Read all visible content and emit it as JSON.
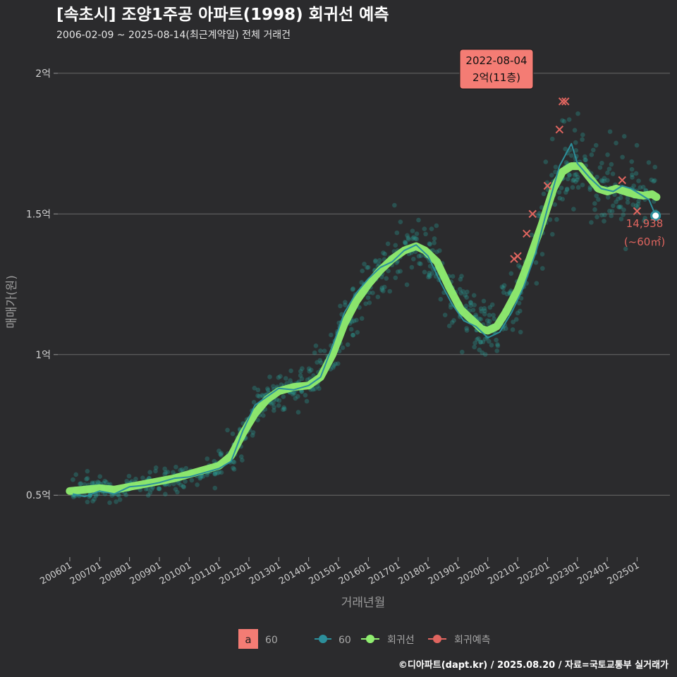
{
  "header": {
    "title": "[속초시] 조양1주공 아파트(1998) 회귀선 예측",
    "subtitle": "2006-02-09 ~ 2025-08-14(최근계약일) 전체 거래건"
  },
  "credit": "©디아파트(dapt.kr) / 2025.08.20 / 자료=국토교통부 실거래가",
  "colors": {
    "background": "#2b2b2d",
    "scatter": "#2aa198",
    "trend_line": "#2c8f9b",
    "regression": "#90ee70",
    "prediction": "#e0655f",
    "grid": "#6a6a6a"
  },
  "legend": {
    "badge_letter": "a",
    "badge_label": "60",
    "items": [
      {
        "label": "60",
        "color": "#2c8f9b"
      },
      {
        "label": "회귀선",
        "color": "#90ee70"
      },
      {
        "label": "회귀예측",
        "color": "#e0655f"
      }
    ]
  },
  "callout": {
    "date": "2022-08-04",
    "value_text": "2억(11층)",
    "x": 2022.59,
    "y": 19000
  },
  "last_point": {
    "x": 2025.62,
    "y": 14938,
    "value_text": "14,938",
    "area_text": "(~60㎡)"
  },
  "chart_data": {
    "type": "scatter",
    "xlabel": "거래년월",
    "ylabel": "매매가(원)",
    "xlim": [
      2005.6,
      2026.1
    ],
    "ylim": [
      2800,
      20600
    ],
    "y_ticks": [
      {
        "value": 5000,
        "label": "0.5억"
      },
      {
        "value": 10000,
        "label": "1억"
      },
      {
        "value": 15000,
        "label": "1.5억"
      },
      {
        "value": 20000,
        "label": "2억"
      }
    ],
    "x_ticks": [
      {
        "value": 2006.0,
        "label": "200601"
      },
      {
        "value": 2007.0,
        "label": "200701"
      },
      {
        "value": 2008.0,
        "label": "200801"
      },
      {
        "value": 2009.0,
        "label": "200901"
      },
      {
        "value": 2010.0,
        "label": "201001"
      },
      {
        "value": 2011.0,
        "label": "201101"
      },
      {
        "value": 2012.0,
        "label": "201201"
      },
      {
        "value": 2013.0,
        "label": "201301"
      },
      {
        "value": 2014.0,
        "label": "201401"
      },
      {
        "value": 2015.0,
        "label": "201501"
      },
      {
        "value": 2016.0,
        "label": "201601"
      },
      {
        "value": 2017.0,
        "label": "201701"
      },
      {
        "value": 2018.0,
        "label": "201801"
      },
      {
        "value": 2019.0,
        "label": "201901"
      },
      {
        "value": 2020.0,
        "label": "202001"
      },
      {
        "value": 2021.0,
        "label": "202101"
      },
      {
        "value": 2022.0,
        "label": "202201"
      },
      {
        "value": 2023.0,
        "label": "202301"
      },
      {
        "value": 2024.0,
        "label": "202401"
      },
      {
        "value": 2025.0,
        "label": "202501"
      }
    ],
    "series": [
      {
        "name": "60",
        "kind": "trend",
        "x": [
          2006.1,
          2006.5,
          2007.0,
          2007.5,
          2008.0,
          2008.5,
          2009.0,
          2009.5,
          2010.0,
          2010.5,
          2011.0,
          2011.4,
          2011.8,
          2012.2,
          2012.6,
          2013.0,
          2013.5,
          2014.0,
          2014.4,
          2014.8,
          2015.2,
          2015.6,
          2016.0,
          2016.4,
          2016.8,
          2017.2,
          2017.6,
          2018.0,
          2018.4,
          2018.8,
          2019.2,
          2019.6,
          2020.0,
          2020.4,
          2020.8,
          2021.2,
          2021.6,
          2022.0,
          2022.4,
          2022.8,
          2023.0,
          2023.4,
          2023.8,
          2024.2,
          2024.5,
          2024.8,
          2025.1,
          2025.4,
          2025.62
        ],
        "y": [
          5050,
          4950,
          5150,
          5050,
          5300,
          5350,
          5450,
          5600,
          5650,
          5800,
          5950,
          6200,
          7300,
          8200,
          8500,
          8800,
          8750,
          8900,
          9200,
          10300,
          11500,
          12200,
          12700,
          13100,
          13300,
          13700,
          13900,
          13500,
          12600,
          11800,
          11200,
          11000,
          10600,
          10800,
          11500,
          12400,
          13600,
          15200,
          16700,
          17500,
          16800,
          16300,
          15900,
          15800,
          16000,
          15900,
          15700,
          15500,
          14938
        ]
      },
      {
        "name": "회귀선",
        "kind": "regression",
        "x": [
          2006.0,
          2006.5,
          2007.0,
          2007.5,
          2008.0,
          2008.5,
          2009.0,
          2009.5,
          2010.0,
          2010.5,
          2011.0,
          2011.4,
          2011.8,
          2012.2,
          2012.6,
          2013.0,
          2013.5,
          2014.0,
          2014.4,
          2014.8,
          2015.2,
          2015.6,
          2016.0,
          2016.4,
          2016.8,
          2017.2,
          2017.6,
          2017.9,
          2018.3,
          2018.7,
          2019.1,
          2019.5,
          2019.8,
          2020.0,
          2020.3,
          2020.6,
          2021.0,
          2021.4,
          2021.8,
          2022.2,
          2022.5,
          2022.8,
          2023.1,
          2023.4,
          2023.7,
          2024.0,
          2024.3,
          2024.6,
          2024.9,
          2025.2,
          2025.5,
          2025.65
        ],
        "y": [
          5150,
          5200,
          5250,
          5200,
          5300,
          5400,
          5500,
          5600,
          5750,
          5900,
          6050,
          6400,
          7200,
          7900,
          8400,
          8700,
          8850,
          8900,
          9200,
          10000,
          11100,
          11900,
          12500,
          13000,
          13400,
          13700,
          13850,
          13700,
          13300,
          12400,
          11600,
          11200,
          10900,
          10850,
          11000,
          11500,
          12300,
          13400,
          14600,
          15900,
          16500,
          16700,
          16700,
          16300,
          15900,
          15800,
          15900,
          15800,
          15700,
          15650,
          15700,
          15600
        ]
      },
      {
        "name": "회귀예측",
        "kind": "prediction",
        "x": [
          2020.88,
          2021.0,
          2021.3,
          2021.5,
          2022.0,
          2022.4,
          2022.5,
          2022.6,
          2024.5,
          2025.0
        ],
        "y": [
          13400,
          13500,
          14300,
          15000,
          16000,
          18000,
          19000,
          19000,
          16200,
          15100
        ]
      }
    ],
    "scatter_note": "dense cloud of individual transactions around the regression curve"
  }
}
